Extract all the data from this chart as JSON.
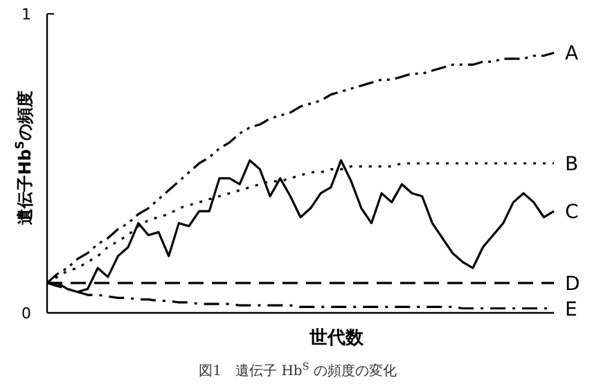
{
  "chart_data": {
    "type": "line",
    "xlabel": "世代数",
    "ylabel": "遺伝子Hb$^{S}$の頻度",
    "annotations": [
      "図1　遺伝子 Hb$^{S}$ の頻度の変化"
    ],
    "ylim": [
      0,
      1
    ],
    "yticks": [
      0,
      1
    ],
    "categories": [
      null,
      null,
      null,
      null,
      null,
      null,
      null,
      null,
      null,
      null,
      null,
      null,
      null,
      null,
      null,
      null,
      null,
      null,
      null,
      null,
      null,
      null,
      null,
      null,
      null,
      null,
      null,
      null,
      null,
      null,
      null,
      null,
      null,
      null,
      null,
      null,
      null,
      null,
      null,
      null,
      null,
      null,
      null,
      null,
      null,
      null,
      null,
      null,
      null,
      null,
      null
    ],
    "series": [
      {
        "name": "A",
        "color": "#000000",
        "line_style": "dashdotdot",
        "values": [
          0.1,
          0.13,
          0.15,
          0.18,
          0.2,
          0.23,
          0.25,
          0.28,
          0.3,
          0.33,
          0.35,
          0.38,
          0.41,
          0.44,
          0.47,
          0.5,
          0.52,
          0.55,
          0.57,
          0.6,
          0.62,
          0.63,
          0.65,
          0.66,
          0.67,
          0.69,
          0.7,
          0.71,
          0.73,
          0.74,
          0.75,
          0.76,
          0.77,
          0.78,
          0.78,
          0.79,
          0.8,
          0.8,
          0.81,
          0.82,
          0.83,
          0.83,
          0.83,
          0.84,
          0.84,
          0.85,
          0.85,
          0.85,
          0.86,
          0.86,
          0.87
        ]
      },
      {
        "name": "B",
        "color": "#000000",
        "line_style": "dotted",
        "values": [
          0.1,
          0.12,
          0.14,
          0.15,
          0.17,
          0.19,
          0.22,
          0.24,
          0.26,
          0.29,
          0.31,
          0.32,
          0.33,
          0.35,
          0.36,
          0.37,
          0.38,
          0.39,
          0.4,
          0.41,
          0.42,
          0.43,
          0.44,
          0.44,
          0.45,
          0.46,
          0.47,
          0.47,
          0.48,
          0.48,
          0.49,
          0.49,
          0.49,
          0.49,
          0.49,
          0.5,
          0.5,
          0.5,
          0.5,
          0.5,
          0.5,
          0.5,
          0.5,
          0.5,
          0.5,
          0.5,
          0.5,
          0.5,
          0.5,
          0.5,
          0.5
        ]
      },
      {
        "name": "C",
        "color": "#000000",
        "line_style": "solid",
        "values": [
          0.1,
          0.1,
          0.08,
          0.07,
          0.08,
          0.15,
          0.12,
          0.19,
          0.22,
          0.3,
          0.26,
          0.27,
          0.19,
          0.3,
          0.29,
          0.34,
          0.34,
          0.45,
          0.45,
          0.43,
          0.51,
          0.48,
          0.39,
          0.45,
          0.39,
          0.32,
          0.35,
          0.4,
          0.42,
          0.51,
          0.44,
          0.35,
          0.3,
          0.4,
          0.37,
          0.43,
          0.4,
          0.39,
          0.3,
          0.25,
          0.2,
          0.17,
          0.15,
          0.22,
          0.26,
          0.3,
          0.37,
          0.4,
          0.37,
          0.32,
          0.34
        ]
      },
      {
        "name": "D",
        "color": "#000000",
        "line_style": "dashed",
        "values": [
          0.1,
          0.1,
          0.1,
          0.1,
          0.1,
          0.1,
          0.1,
          0.1,
          0.1,
          0.1,
          0.1,
          0.1,
          0.1,
          0.1,
          0.1,
          0.1,
          0.1,
          0.1,
          0.1,
          0.1,
          0.1,
          0.1,
          0.1,
          0.1,
          0.1,
          0.1,
          0.1,
          0.1,
          0.1,
          0.1,
          0.1,
          0.1,
          0.1,
          0.1,
          0.1,
          0.1,
          0.1,
          0.1,
          0.1,
          0.1,
          0.1,
          0.1,
          0.1,
          0.1,
          0.1,
          0.1,
          0.1,
          0.1,
          0.1,
          0.1,
          0.1
        ]
      },
      {
        "name": "E",
        "color": "#000000",
        "line_style": "dashdot",
        "values": [
          0.1,
          0.09,
          0.08,
          0.07,
          0.06,
          0.06,
          0.055,
          0.05,
          0.05,
          0.045,
          0.045,
          0.04,
          0.04,
          0.035,
          0.035,
          0.03,
          0.03,
          0.03,
          0.03,
          0.025,
          0.025,
          0.025,
          0.025,
          0.025,
          0.025,
          0.02,
          0.02,
          0.02,
          0.02,
          0.02,
          0.02,
          0.02,
          0.02,
          0.02,
          0.02,
          0.02,
          0.02,
          0.02,
          0.02,
          0.02,
          0.02,
          0.015,
          0.015,
          0.015,
          0.015,
          0.015,
          0.015,
          0.015,
          0.015,
          0.015,
          0.015
        ]
      }
    ]
  }
}
